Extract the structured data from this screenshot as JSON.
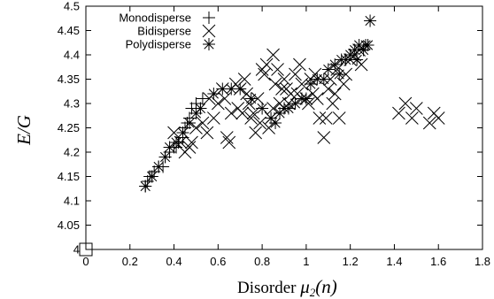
{
  "chart_data": {
    "type": "scatter",
    "xlabel_prefix": "Disorder ",
    "xlabel_math": "μ2(n)",
    "ylabel": "E/G",
    "xlim": [
      0,
      1.8
    ],
    "ylim": [
      4.0,
      4.5
    ],
    "x_ticks": [
      "0",
      "0.2",
      "0.4",
      "0.6",
      "0.8",
      "1",
      "1.2",
      "1.4",
      "1.6",
      "1.8"
    ],
    "y_ticks": [
      "4",
      "4.05",
      "4.1",
      "4.15",
      "4.2",
      "4.25",
      "4.3",
      "4.35",
      "4.4",
      "4.45",
      "4.5"
    ],
    "legend_position": "top-left",
    "special_point": {
      "x": 0,
      "y": 4.0,
      "marker": "square"
    },
    "series": [
      {
        "name": "Monodisperse",
        "marker": "plus",
        "points": [
          [
            0.27,
            4.13
          ],
          [
            0.28,
            4.14
          ],
          [
            0.3,
            4.15
          ],
          [
            0.31,
            4.16
          ],
          [
            0.33,
            4.17
          ],
          [
            0.35,
            4.17
          ],
          [
            0.38,
            4.2
          ],
          [
            0.4,
            4.21
          ],
          [
            0.42,
            4.22
          ],
          [
            0.44,
            4.23
          ],
          [
            0.46,
            4.26
          ],
          [
            0.47,
            4.27
          ],
          [
            0.48,
            4.29
          ],
          [
            0.5,
            4.3
          ],
          [
            0.52,
            4.29
          ],
          [
            0.53,
            4.31
          ],
          [
            0.45,
            4.25
          ],
          [
            0.41,
            4.21
          ],
          [
            0.29,
            4.15
          ],
          [
            0.36,
            4.19
          ]
        ]
      },
      {
        "name": "Bidisperse",
        "marker": "x",
        "points": [
          [
            0.4,
            4.24
          ],
          [
            0.43,
            4.22
          ],
          [
            0.45,
            4.2
          ],
          [
            0.48,
            4.22
          ],
          [
            0.5,
            4.25
          ],
          [
            0.53,
            4.26
          ],
          [
            0.56,
            4.31
          ],
          [
            0.6,
            4.3
          ],
          [
            0.62,
            4.33
          ],
          [
            0.64,
            4.23
          ],
          [
            0.65,
            4.22
          ],
          [
            0.66,
            4.28
          ],
          [
            0.68,
            4.34
          ],
          [
            0.7,
            4.33
          ],
          [
            0.72,
            4.35
          ],
          [
            0.74,
            4.3
          ],
          [
            0.76,
            4.28
          ],
          [
            0.78,
            4.31
          ],
          [
            0.8,
            4.37
          ],
          [
            0.81,
            4.36
          ],
          [
            0.83,
            4.25
          ],
          [
            0.85,
            4.29
          ],
          [
            0.86,
            4.34
          ],
          [
            0.87,
            4.37
          ],
          [
            0.88,
            4.3
          ],
          [
            0.9,
            4.35
          ],
          [
            0.91,
            4.33
          ],
          [
            0.93,
            4.32
          ],
          [
            0.95,
            4.36
          ],
          [
            0.97,
            4.38
          ],
          [
            0.98,
            4.34
          ],
          [
            1.0,
            4.31
          ],
          [
            1.02,
            4.35
          ],
          [
            1.04,
            4.36
          ],
          [
            1.05,
            4.31
          ],
          [
            1.06,
            4.27
          ],
          [
            1.08,
            4.23
          ],
          [
            1.09,
            4.27
          ],
          [
            1.1,
            4.33
          ],
          [
            1.12,
            4.3
          ],
          [
            1.14,
            4.37
          ],
          [
            1.15,
            4.27
          ],
          [
            1.17,
            4.34
          ],
          [
            1.2,
            4.39
          ],
          [
            1.22,
            4.4
          ],
          [
            1.24,
            4.41
          ],
          [
            1.25,
            4.38
          ],
          [
            1.45,
            4.3
          ],
          [
            1.48,
            4.27
          ],
          [
            1.5,
            4.29
          ],
          [
            1.56,
            4.26
          ],
          [
            1.58,
            4.28
          ],
          [
            1.6,
            4.27
          ],
          [
            1.42,
            4.28
          ],
          [
            0.84,
            4.27
          ],
          [
            0.77,
            4.24
          ],
          [
            0.58,
            4.27
          ],
          [
            0.69,
            4.29
          ],
          [
            0.92,
            4.3
          ],
          [
            1.01,
            4.3
          ],
          [
            0.73,
            4.32
          ],
          [
            0.96,
            4.32
          ],
          [
            1.11,
            4.35
          ],
          [
            0.79,
            4.26
          ],
          [
            0.63,
            4.31
          ],
          [
            0.71,
            4.28
          ],
          [
            0.89,
            4.33
          ],
          [
            1.13,
            4.32
          ],
          [
            0.55,
            4.24
          ],
          [
            0.47,
            4.21
          ],
          [
            0.85,
            4.4
          ],
          [
            0.82,
            4.38
          ],
          [
            1.03,
            4.32
          ],
          [
            1.18,
            4.36
          ],
          [
            0.75,
            4.27
          ]
        ]
      },
      {
        "name": "Polydisperse",
        "marker": "star",
        "points": [
          [
            0.27,
            4.13
          ],
          [
            0.3,
            4.15
          ],
          [
            0.33,
            4.17
          ],
          [
            0.36,
            4.19
          ],
          [
            0.38,
            4.21
          ],
          [
            0.41,
            4.22
          ],
          [
            0.44,
            4.24
          ],
          [
            0.47,
            4.26
          ],
          [
            0.5,
            4.28
          ],
          [
            0.52,
            4.29
          ],
          [
            0.62,
            4.33
          ],
          [
            0.7,
            4.33
          ],
          [
            0.75,
            4.31
          ],
          [
            0.8,
            4.29
          ],
          [
            0.84,
            4.27
          ],
          [
            0.86,
            4.26
          ],
          [
            0.88,
            4.28
          ],
          [
            0.92,
            4.29
          ],
          [
            0.95,
            4.3
          ],
          [
            1.0,
            4.31
          ],
          [
            1.02,
            4.34
          ],
          [
            1.05,
            4.35
          ],
          [
            1.1,
            4.37
          ],
          [
            1.13,
            4.38
          ],
          [
            1.15,
            4.36
          ],
          [
            1.18,
            4.39
          ],
          [
            1.2,
            4.4
          ],
          [
            1.22,
            4.41
          ],
          [
            1.24,
            4.42
          ],
          [
            1.26,
            4.41
          ],
          [
            1.28,
            4.42
          ],
          [
            1.29,
            4.47
          ],
          [
            0.9,
            4.29
          ],
          [
            0.98,
            4.31
          ],
          [
            1.08,
            4.35
          ],
          [
            1.16,
            4.39
          ],
          [
            1.23,
            4.39
          ],
          [
            1.27,
            4.42
          ],
          [
            0.58,
            4.32
          ],
          [
            0.66,
            4.33
          ]
        ]
      }
    ]
  }
}
